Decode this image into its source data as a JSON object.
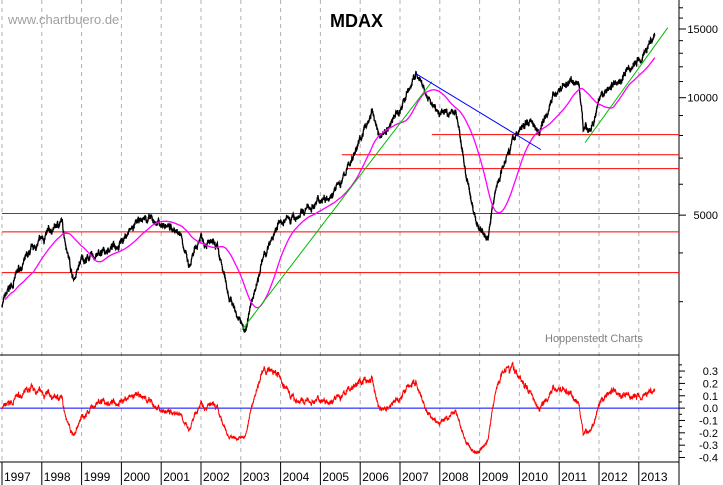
{
  "chart_data": [
    {
      "type": "line",
      "title": "MDAX",
      "watermark": "www.chartbuero.de",
      "source": "Hoppenstedt Charts",
      "y_scale": "log",
      "ylim": [
        2190,
        17800
      ],
      "y_ticks": [
        5000,
        10000,
        15000
      ],
      "x_ticks": [
        "1997",
        "1998",
        "1999",
        "2000",
        "2001",
        "2002",
        "2003",
        "2004",
        "2005",
        "2006",
        "2007",
        "2008",
        "2009",
        "2010",
        "2011",
        "2012",
        "2013"
      ],
      "grid": "vertical dashed year lines",
      "colors": {
        "price": "#000000",
        "moving_average": "#ff00ff",
        "support_lines": "#ff0000",
        "uptrend": "#00bb00",
        "downtrend": "#0000ff",
        "oscillator": "#ff0000",
        "zero_line": "#0000ff"
      },
      "series": [
        {
          "type": "price",
          "points": [
            [
              1997.0,
              2950
            ],
            [
              1997.5,
              3730
            ],
            [
              1998.0,
              4320
            ],
            [
              1998.5,
              4810
            ],
            [
              1998.8,
              3410
            ],
            [
              1999.0,
              3840
            ],
            [
              1999.5,
              3960
            ],
            [
              2000.0,
              4320
            ],
            [
              2000.3,
              4640
            ],
            [
              2000.6,
              4930
            ],
            [
              2001.0,
              4730
            ],
            [
              2001.5,
              4530
            ],
            [
              2001.7,
              3620
            ],
            [
              2002.0,
              4450
            ],
            [
              2002.4,
              4080
            ],
            [
              2002.7,
              3130
            ],
            [
              2003.1,
              2500
            ],
            [
              2003.5,
              3730
            ],
            [
              2004.0,
              4810
            ],
            [
              2004.5,
              5010
            ],
            [
              2005.0,
              5480
            ],
            [
              2005.5,
              5980
            ],
            [
              2006.0,
              7810
            ],
            [
              2006.3,
              9210
            ],
            [
              2006.5,
              7900
            ],
            [
              2007.0,
              9320
            ],
            [
              2007.4,
              11460
            ],
            [
              2007.7,
              9880
            ],
            [
              2008.0,
              9050
            ],
            [
              2008.4,
              9320
            ],
            [
              2008.7,
              5980
            ],
            [
              2008.9,
              4860
            ],
            [
              2009.2,
              4320
            ],
            [
              2009.4,
              5800
            ],
            [
              2009.7,
              7360
            ],
            [
              2010.0,
              8280
            ],
            [
              2010.3,
              8780
            ],
            [
              2010.5,
              8280
            ],
            [
              2010.8,
              9880
            ],
            [
              2011.0,
              10480
            ],
            [
              2011.3,
              11120
            ],
            [
              2011.5,
              10800
            ],
            [
              2011.6,
              8530
            ],
            [
              2011.8,
              8280
            ],
            [
              2012.0,
              9600
            ],
            [
              2012.3,
              10800
            ],
            [
              2012.6,
              11250
            ],
            [
              2012.9,
              12150
            ],
            [
              2013.2,
              13440
            ],
            [
              2013.4,
              14500
            ]
          ]
        }
      ],
      "horizontal_lines": [
        {
          "value": 8040,
          "from": 2007.8
        },
        {
          "value": 7140,
          "from": 2005.54
        },
        {
          "value": 6580,
          "from": 2005.67
        },
        {
          "value": 5050,
          "from": 1997.0
        },
        {
          "value": 4530,
          "from": 1997.0
        },
        {
          "value": 3560,
          "from": 1997.0
        }
      ],
      "trend_lines": [
        {
          "kind": "uptrend",
          "from": [
            2003.03,
            2540
          ],
          "to": [
            2007.8,
            10990
          ]
        },
        {
          "kind": "uptrend",
          "from": [
            2011.65,
            7670
          ],
          "to": [
            2013.73,
            15130
          ]
        },
        {
          "kind": "downtrend",
          "from": [
            2007.4,
            11520
          ],
          "to": [
            2010.54,
            7360
          ]
        }
      ]
    },
    {
      "type": "line",
      "panel": "oscillator",
      "ylim": [
        -0.42,
        0.43
      ],
      "y_ticks": [
        "0.3",
        "0.2",
        "0.1",
        "0.0",
        "-0.1",
        "-0.2",
        "-0.3",
        "-0.4"
      ],
      "reference_line": 0.0
    }
  ]
}
